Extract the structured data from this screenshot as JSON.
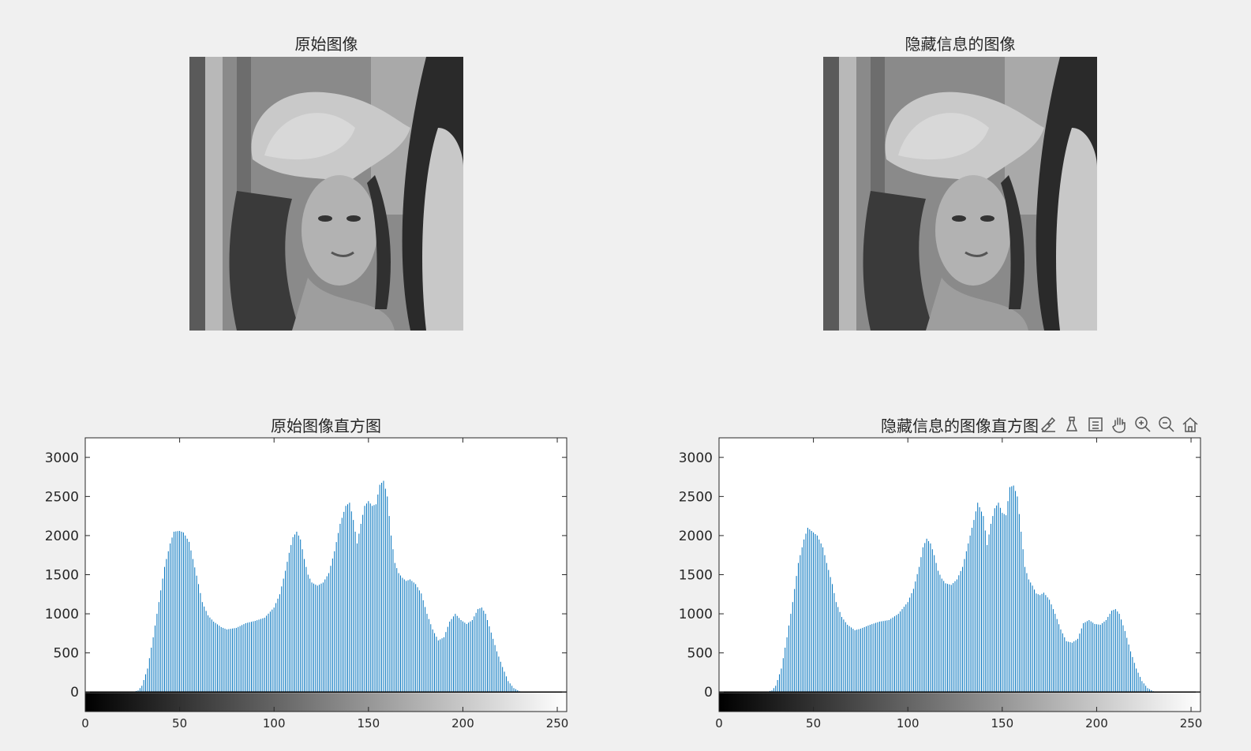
{
  "images": {
    "original": {
      "title": "原始图像"
    },
    "stego": {
      "title": "隐藏信息的图像"
    }
  },
  "toolbar": {
    "icons": [
      "brush-data-icon",
      "data-tip-icon",
      "legend-icon",
      "pan-icon",
      "zoom-in-icon",
      "zoom-out-icon",
      "home-icon"
    ]
  },
  "colors": {
    "bar": "#0072bd",
    "axis": "#262626",
    "background": "#f0f0f0"
  },
  "chart_data": [
    {
      "type": "bar",
      "title": "原始图像直方图",
      "xlabel": "",
      "ylabel": "",
      "xlim": [
        0,
        255
      ],
      "ylim": [
        -250,
        3250
      ],
      "xticks": [
        0,
        50,
        100,
        150,
        200,
        250
      ],
      "yticks": [
        0,
        500,
        1000,
        1500,
        2000,
        2500,
        3000
      ],
      "colorbar": "gray",
      "anchors": [
        [
          0,
          0
        ],
        [
          25,
          0
        ],
        [
          28,
          20
        ],
        [
          30,
          80
        ],
        [
          33,
          300
        ],
        [
          36,
          700
        ],
        [
          39,
          1150
        ],
        [
          42,
          1600
        ],
        [
          45,
          1900
        ],
        [
          47,
          2050
        ],
        [
          50,
          2060
        ],
        [
          52,
          2040
        ],
        [
          55,
          1920
        ],
        [
          57,
          1700
        ],
        [
          60,
          1380
        ],
        [
          62,
          1150
        ],
        [
          65,
          980
        ],
        [
          68,
          900
        ],
        [
          72,
          830
        ],
        [
          75,
          800
        ],
        [
          80,
          820
        ],
        [
          85,
          880
        ],
        [
          90,
          910
        ],
        [
          95,
          950
        ],
        [
          100,
          1080
        ],
        [
          103,
          1250
        ],
        [
          106,
          1550
        ],
        [
          108,
          1780
        ],
        [
          110,
          1980
        ],
        [
          112,
          2050
        ],
        [
          114,
          1950
        ],
        [
          116,
          1700
        ],
        [
          118,
          1500
        ],
        [
          120,
          1400
        ],
        [
          123,
          1360
        ],
        [
          126,
          1400
        ],
        [
          129,
          1520
        ],
        [
          132,
          1800
        ],
        [
          135,
          2150
        ],
        [
          138,
          2380
        ],
        [
          140,
          2420
        ],
        [
          142,
          2200
        ],
        [
          144,
          1900
        ],
        [
          146,
          2150
        ],
        [
          148,
          2380
        ],
        [
          150,
          2440
        ],
        [
          152,
          2380
        ],
        [
          154,
          2400
        ],
        [
          156,
          2650
        ],
        [
          158,
          2700
        ],
        [
          160,
          2500
        ],
        [
          162,
          2000
        ],
        [
          164,
          1650
        ],
        [
          166,
          1520
        ],
        [
          168,
          1460
        ],
        [
          170,
          1420
        ],
        [
          172,
          1440
        ],
        [
          175,
          1380
        ],
        [
          178,
          1260
        ],
        [
          181,
          1000
        ],
        [
          184,
          800
        ],
        [
          187,
          660
        ],
        [
          190,
          700
        ],
        [
          193,
          900
        ],
        [
          196,
          1000
        ],
        [
          199,
          920
        ],
        [
          202,
          870
        ],
        [
          205,
          920
        ],
        [
          208,
          1060
        ],
        [
          210,
          1080
        ],
        [
          212,
          1000
        ],
        [
          215,
          760
        ],
        [
          218,
          520
        ],
        [
          221,
          320
        ],
        [
          224,
          140
        ],
        [
          227,
          50
        ],
        [
          230,
          10
        ],
        [
          233,
          0
        ],
        [
          255,
          0
        ]
      ]
    },
    {
      "type": "bar",
      "title": "隐藏信息的图像直方图",
      "xlabel": "",
      "ylabel": "",
      "xlim": [
        0,
        255
      ],
      "ylim": [
        -250,
        3250
      ],
      "xticks": [
        0,
        50,
        100,
        150,
        200,
        250
      ],
      "yticks": [
        0,
        500,
        1000,
        1500,
        2000,
        2500,
        3000
      ],
      "colorbar": "gray",
      "anchors": [
        [
          0,
          0
        ],
        [
          25,
          0
        ],
        [
          28,
          20
        ],
        [
          30,
          80
        ],
        [
          33,
          300
        ],
        [
          36,
          700
        ],
        [
          39,
          1150
        ],
        [
          42,
          1650
        ],
        [
          45,
          1950
        ],
        [
          47,
          2100
        ],
        [
          50,
          2040
        ],
        [
          52,
          2000
        ],
        [
          55,
          1850
        ],
        [
          57,
          1650
        ],
        [
          60,
          1380
        ],
        [
          62,
          1150
        ],
        [
          65,
          960
        ],
        [
          68,
          860
        ],
        [
          72,
          790
        ],
        [
          75,
          810
        ],
        [
          80,
          860
        ],
        [
          85,
          900
        ],
        [
          90,
          920
        ],
        [
          95,
          1000
        ],
        [
          100,
          1150
        ],
        [
          103,
          1320
        ],
        [
          106,
          1600
        ],
        [
          108,
          1850
        ],
        [
          110,
          1960
        ],
        [
          112,
          1900
        ],
        [
          114,
          1750
        ],
        [
          116,
          1550
        ],
        [
          118,
          1450
        ],
        [
          120,
          1390
        ],
        [
          123,
          1370
        ],
        [
          126,
          1440
        ],
        [
          129,
          1600
        ],
        [
          132,
          1900
        ],
        [
          135,
          2200
        ],
        [
          137,
          2420
        ],
        [
          140,
          2250
        ],
        [
          142,
          1880
        ],
        [
          144,
          2150
        ],
        [
          146,
          2350
        ],
        [
          148,
          2420
        ],
        [
          150,
          2290
        ],
        [
          152,
          2260
        ],
        [
          154,
          2620
        ],
        [
          156,
          2640
        ],
        [
          158,
          2500
        ],
        [
          160,
          2050
        ],
        [
          162,
          1600
        ],
        [
          164,
          1440
        ],
        [
          166,
          1360
        ],
        [
          168,
          1260
        ],
        [
          170,
          1240
        ],
        [
          172,
          1270
        ],
        [
          175,
          1180
        ],
        [
          178,
          1000
        ],
        [
          181,
          800
        ],
        [
          184,
          650
        ],
        [
          187,
          630
        ],
        [
          190,
          680
        ],
        [
          193,
          880
        ],
        [
          196,
          920
        ],
        [
          199,
          870
        ],
        [
          202,
          860
        ],
        [
          205,
          920
        ],
        [
          208,
          1040
        ],
        [
          210,
          1060
        ],
        [
          212,
          1000
        ],
        [
          215,
          780
        ],
        [
          218,
          520
        ],
        [
          221,
          300
        ],
        [
          224,
          140
        ],
        [
          227,
          50
        ],
        [
          230,
          10
        ],
        [
          233,
          0
        ],
        [
          255,
          0
        ]
      ]
    }
  ]
}
